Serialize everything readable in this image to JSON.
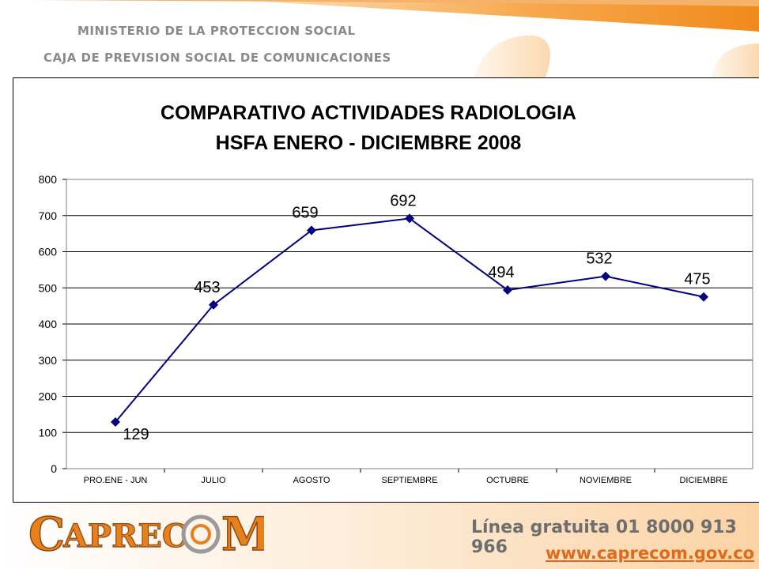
{
  "header": {
    "line1": "MINISTERIO DE LA PROTECCION SOCIAL",
    "line2": "CAJA DE PREVISION SOCIAL DE COMUNICACIONES"
  },
  "colors": {
    "accent": "#f08a1c",
    "series": "#000080",
    "header_text": "#8a8a8a",
    "link": "#e06a1a"
  },
  "chart_data": {
    "type": "line",
    "title": [
      "COMPARATIVO ACTIVIDADES RADIOLOGIA",
      "HSFA  ENERO - DICIEMBRE 2008"
    ],
    "categories": [
      "PRO.ENE - JUN",
      "JULIO",
      "AGOSTO",
      "SEPTIEMBRE",
      "OCTUBRE",
      "NOVIEMBRE",
      "DICIEMBRE"
    ],
    "series": [
      {
        "values": [
          129,
          453,
          659,
          692,
          494,
          532,
          475
        ]
      }
    ],
    "ylim": [
      0,
      800
    ],
    "yticks": [
      0,
      100,
      200,
      300,
      400,
      500,
      600,
      700,
      800
    ],
    "grid": true,
    "legend": "none",
    "marker": "diamond"
  },
  "footer": {
    "logo_text": "CAPRECOM",
    "hotline": "Línea gratuita 01 8000 913 966",
    "website": "www.caprecom.gov.co"
  }
}
